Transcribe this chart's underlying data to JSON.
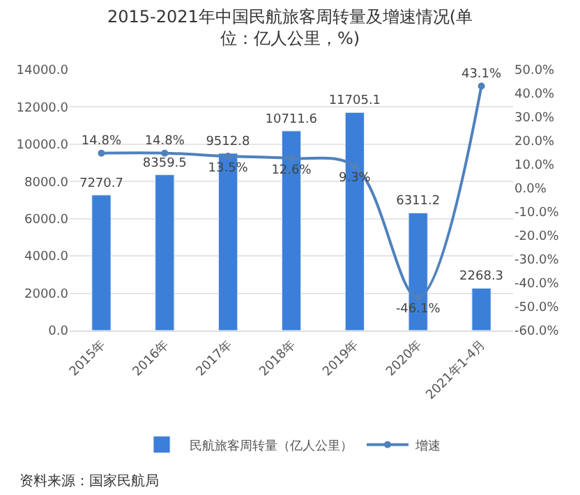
{
  "chart_data": {
    "type": "bar",
    "title": "2015-2021年中国民航旅客周转量及增速情况(单位：亿人公里，%)",
    "categories": [
      "2015年",
      "2016年",
      "2017年",
      "2018年",
      "2019年",
      "2020年",
      "2021年1-4月"
    ],
    "series": [
      {
        "name": "民航旅客周转量（亿人公里）",
        "color": "#3b7fd9",
        "values": [
          7270.7,
          8359.5,
          9512.8,
          10711.6,
          11705.1,
          6311.2,
          2268.3
        ],
        "value_labels": [
          "7270.7",
          "8359.5",
          "9512.8",
          "10711.6",
          "11705.1",
          "6311.2",
          "2268.3"
        ]
      },
      {
        "name": "增速",
        "type": "line",
        "axis": "y2",
        "color": "#4f81bd",
        "values": [
          14.8,
          14.8,
          13.5,
          12.6,
          9.3,
          -46.1,
          43.1
        ],
        "value_labels": [
          "14.8%",
          "14.8%",
          "13.5%",
          "12.6%",
          "9.3%",
          "-46.1%",
          "43.1%"
        ]
      }
    ],
    "ylim": [
      0,
      14000
    ],
    "yticks": [
      {
        "value": 0,
        "label": "0.0"
      },
      {
        "value": 2000,
        "label": "2000.0"
      },
      {
        "value": 4000,
        "label": "4000.0"
      },
      {
        "value": 6000,
        "label": "6000.0"
      },
      {
        "value": 8000,
        "label": "8000.0"
      },
      {
        "value": 10000,
        "label": "10000.0"
      },
      {
        "value": 12000,
        "label": "12000.0"
      },
      {
        "value": 14000,
        "label": "14000.0"
      }
    ],
    "y2lim": [
      -60,
      50
    ],
    "y2ticks": [
      {
        "value": -60,
        "label": "-60.0%"
      },
      {
        "value": -50,
        "label": "-50.0%"
      },
      {
        "value": -40,
        "label": "-40.0%"
      },
      {
        "value": -30,
        "label": "-30.0%"
      },
      {
        "value": -20,
        "label": "-20.0%"
      },
      {
        "value": -10,
        "label": "-10.0%"
      },
      {
        "value": 0,
        "label": "0.0%"
      },
      {
        "value": 10,
        "label": "10.0%"
      },
      {
        "value": 20,
        "label": "20.0%"
      },
      {
        "value": 30,
        "label": "30.0%"
      },
      {
        "value": 40,
        "label": "40.0%"
      },
      {
        "value": 50,
        "label": "50.0%"
      }
    ],
    "grid": "y",
    "legend": "bottom",
    "marker": "circle",
    "line_style": "solid",
    "annotations": [
      "资料来源：国家民航局"
    ]
  }
}
